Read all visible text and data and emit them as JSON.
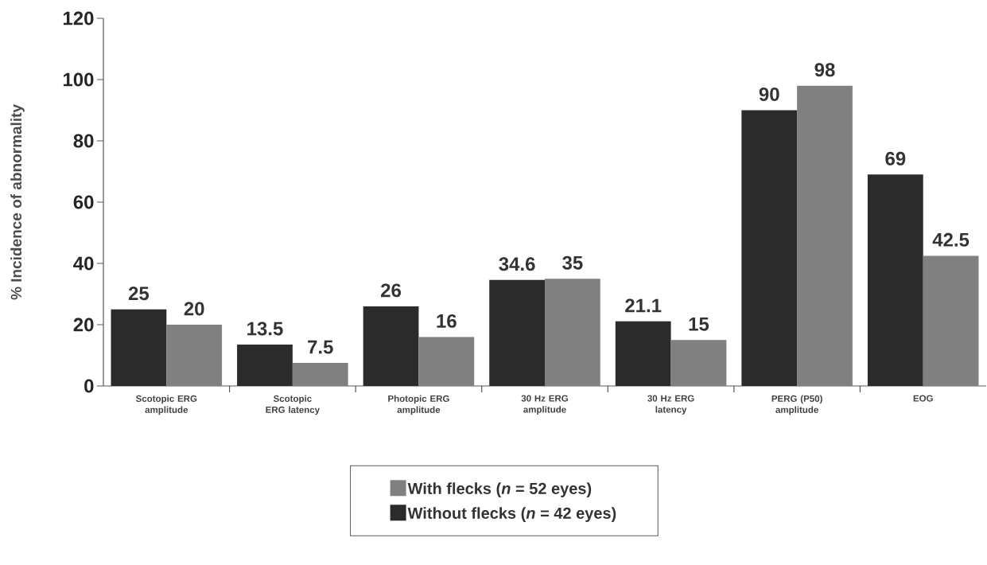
{
  "chart_data": {
    "type": "bar",
    "ylabel": "% Incidence of abnormality",
    "categories": [
      "Scotopic ERG amplitude",
      "Scotopic ERG latency",
      "Photopic ERG amplitude",
      "30 Hz ERG amplitude",
      "30 Hz ERG latency",
      "PERG (P50) amplitude",
      "EOG"
    ],
    "series": [
      {
        "name": "Without flecks (*n* = 42 eyes)",
        "color": "#2b2b2b",
        "values": [
          25,
          13.5,
          26,
          34.6,
          21.1,
          90,
          69
        ]
      },
      {
        "name": "With flecks (*n* = 52 eyes)",
        "color": "#808080",
        "values": [
          20,
          7.5,
          16,
          35,
          15,
          98,
          42.5
        ]
      }
    ],
    "ylim": [
      0,
      120
    ],
    "yticks": [
      0,
      20,
      40,
      60,
      80,
      100,
      120
    ],
    "data_labels": true,
    "grid": false,
    "legend": "bottom"
  }
}
